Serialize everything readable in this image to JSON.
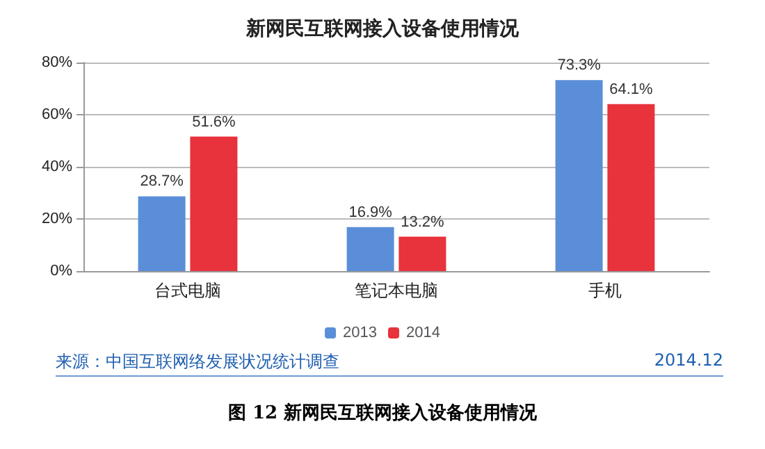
{
  "chart_data": {
    "type": "bar",
    "title": "新网民互联网接入设备使用情况",
    "categories": [
      "台式电脑",
      "笔记本电脑",
      "手机"
    ],
    "series": [
      {
        "name": "2013",
        "color": "#5a8ed8",
        "values": [
          28.7,
          16.9,
          73.3
        ],
        "value_labels": [
          "28.7%",
          "16.9%",
          "73.3%"
        ]
      },
      {
        "name": "2014",
        "color": "#e8323c",
        "values": [
          51.6,
          13.2,
          64.1
        ],
        "value_labels": [
          "51.6%",
          "13.2%",
          "64.1%"
        ]
      }
    ],
    "ylim": [
      0,
      80
    ],
    "yticks": [
      {
        "value": 0,
        "label": "0%"
      },
      {
        "value": 20,
        "label": "20%"
      },
      {
        "value": 40,
        "label": "40%"
      },
      {
        "value": 60,
        "label": "60%"
      },
      {
        "value": 80,
        "label": "80%"
      }
    ],
    "grid": "y",
    "legend": "bottom",
    "annotations": [
      "来源：中国互联网络发展状况统计调查",
      "2014.12",
      "图 12 新网民互联网接入设备使用情况"
    ]
  }
}
